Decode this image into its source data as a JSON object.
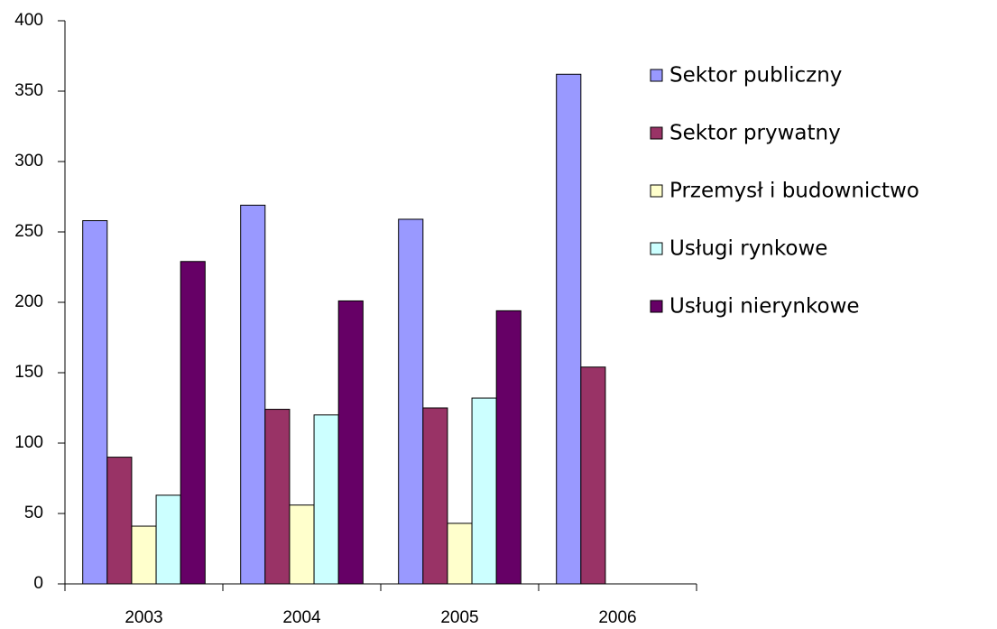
{
  "chart_data": {
    "type": "bar",
    "categories": [
      "2003",
      "2004",
      "2005",
      "2006"
    ],
    "series": [
      {
        "name": "Sektor publiczny",
        "color": "#9999ff",
        "values": [
          258,
          269,
          259,
          362
        ]
      },
      {
        "name": "Sektor prywatny",
        "color": "#993366",
        "values": [
          90,
          124,
          125,
          154
        ]
      },
      {
        "name": "Przemysł i budownictwo",
        "color": "#ffffcc",
        "values": [
          41,
          56,
          43,
          null
        ]
      },
      {
        "name": "Usługi rynkowe",
        "color": "#ccffff",
        "values": [
          63,
          120,
          132,
          null
        ]
      },
      {
        "name": "Usługi nierynkowe",
        "color": "#660066",
        "values": [
          229,
          201,
          194,
          null
        ]
      }
    ],
    "ylim": [
      0,
      400
    ],
    "yticks": [
      0,
      50,
      100,
      150,
      200,
      250,
      300,
      350,
      400
    ],
    "grid": false,
    "legend": "right"
  }
}
